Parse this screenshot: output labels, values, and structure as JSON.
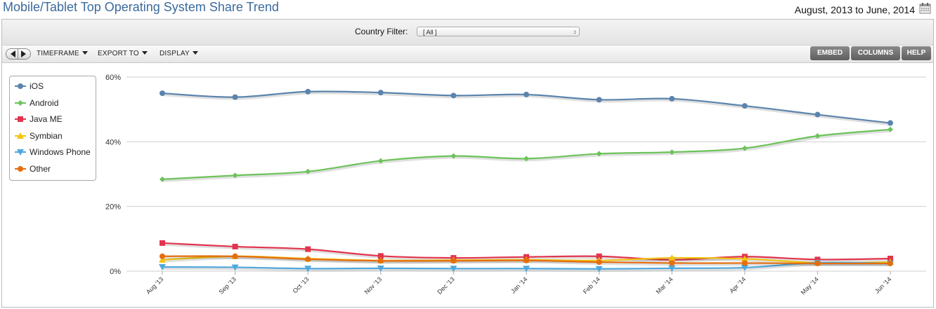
{
  "header": {
    "title": "Mobile/Tablet Top Operating System Share Trend",
    "date_range": "August, 2013 to June, 2014"
  },
  "filter": {
    "label": "Country Filter:",
    "value": "[ All ]"
  },
  "toolbar": {
    "timeframe": "TIMEFRAME",
    "export": "EXPORT TO",
    "display": "DISPLAY",
    "embed": "EMBED",
    "columns": "COLUMNS",
    "help": "HELP"
  },
  "chart_data": {
    "type": "line",
    "categories": [
      "Aug '13",
      "Sep '13",
      "Oct '13",
      "Nov '13",
      "Dec '13",
      "Jan '14",
      "Feb '14",
      "Mar '14",
      "Apr '14",
      "May '14",
      "Jun '14"
    ],
    "yticks": [
      "0%",
      "20%",
      "40%",
      "60%"
    ],
    "ylim": [
      0,
      60
    ],
    "grid": true,
    "legend_position": "top-left",
    "series": [
      {
        "name": "iOS",
        "color": "#5b84ad",
        "marker": "circle",
        "values": [
          55.0,
          53.8,
          55.5,
          55.2,
          54.3,
          54.6,
          53.0,
          53.3,
          51.1,
          48.4,
          45.8
        ]
      },
      {
        "name": "Android",
        "color": "#6cc35a",
        "marker": "diamond",
        "values": [
          28.4,
          29.6,
          30.8,
          34.1,
          35.6,
          34.8,
          36.3,
          36.8,
          38.0,
          41.8,
          43.8
        ]
      },
      {
        "name": "Java ME",
        "color": "#e2344d",
        "marker": "square",
        "values": [
          8.7,
          7.6,
          6.8,
          4.7,
          4.1,
          4.4,
          4.6,
          3.5,
          4.5,
          3.6,
          3.9
        ]
      },
      {
        "name": "Symbian",
        "color": "#f1c40f",
        "marker": "triangle-up",
        "values": [
          3.5,
          4.6,
          3.9,
          3.3,
          3.4,
          3.5,
          3.3,
          4.1,
          3.8,
          2.6,
          2.8
        ]
      },
      {
        "name": "Windows Phone",
        "color": "#4fa8dd",
        "marker": "triangle-down",
        "values": [
          1.3,
          1.2,
          0.8,
          0.9,
          0.8,
          0.8,
          0.7,
          0.9,
          1.1,
          2.6,
          2.4
        ]
      },
      {
        "name": "Other",
        "color": "#e46e0d",
        "marker": "circle",
        "values": [
          4.6,
          4.6,
          3.7,
          3.2,
          3.2,
          3.3,
          2.8,
          2.5,
          2.5,
          2.4,
          2.4
        ]
      }
    ]
  }
}
